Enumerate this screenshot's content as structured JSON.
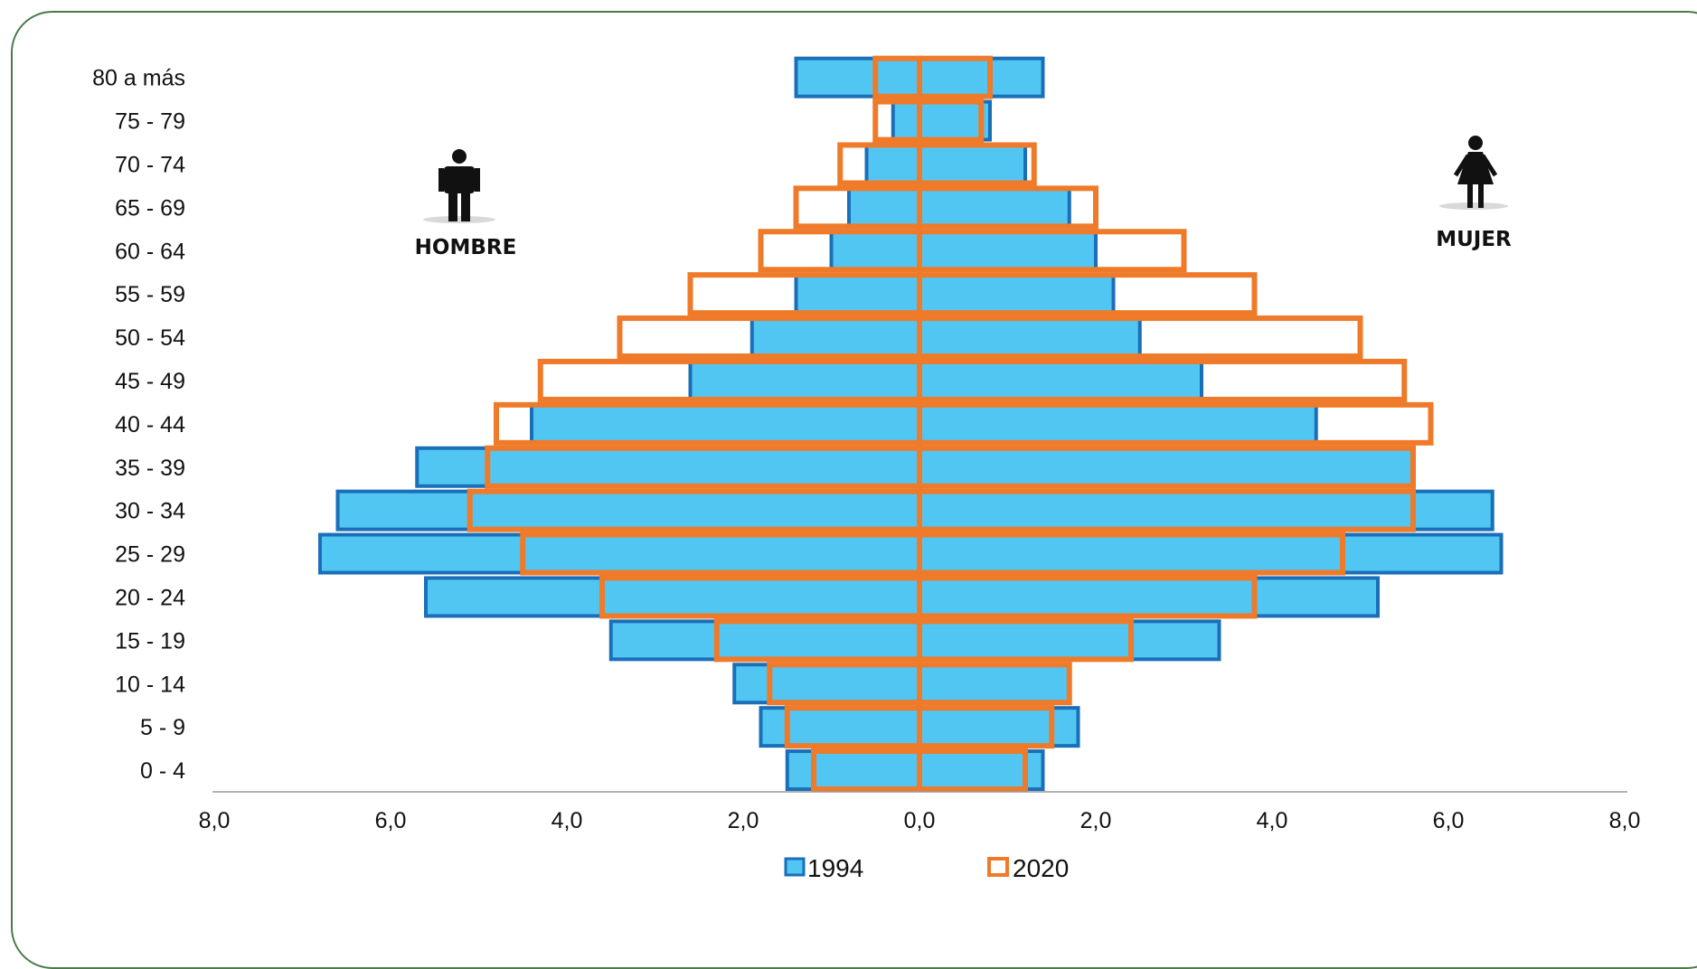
{
  "chart_data": {
    "type": "bar",
    "orientation": "horizontal-population-pyramid",
    "categories": [
      "0 - 4",
      "5 - 9",
      "10 - 14",
      "15 - 19",
      "20 - 24",
      "25 - 29",
      "30 - 34",
      "35 - 39",
      "40 - 44",
      "45 - 49",
      "50 - 54",
      "55 - 59",
      "60 - 64",
      "65 - 69",
      "70 - 74",
      "75 - 79",
      "80 a más"
    ],
    "series": [
      {
        "name": "1994",
        "color": "#52c6f2",
        "edge": "#1a6fb8",
        "hombre": [
          1.5,
          1.8,
          2.1,
          3.5,
          5.6,
          6.8,
          6.6,
          5.7,
          4.4,
          2.6,
          1.9,
          1.4,
          1.0,
          0.8,
          0.6,
          0.3,
          1.4
        ],
        "mujer": [
          1.4,
          1.8,
          1.7,
          3.4,
          5.2,
          6.6,
          6.5,
          5.6,
          4.5,
          3.2,
          2.5,
          2.2,
          2.0,
          1.7,
          1.2,
          0.8,
          1.4
        ]
      },
      {
        "name": "2020",
        "color": "none",
        "edge": "#ee7a2a",
        "hombre": [
          1.2,
          1.5,
          1.7,
          2.3,
          3.6,
          4.5,
          5.1,
          4.9,
          4.8,
          4.3,
          3.4,
          2.6,
          1.8,
          1.4,
          0.9,
          0.5,
          0.5
        ],
        "mujer": [
          1.2,
          1.5,
          1.7,
          2.4,
          3.8,
          4.8,
          5.6,
          5.6,
          5.8,
          5.5,
          5.0,
          3.8,
          3.0,
          2.0,
          1.3,
          0.7,
          0.8
        ]
      }
    ],
    "x_ticks": [
      "8,0",
      "6,0",
      "4,0",
      "2,0",
      "0,0",
      "2,0",
      "4,0",
      "6,0",
      "8,0"
    ],
    "xlim": [
      -8,
      8
    ],
    "legend": [
      "1994",
      "2020"
    ],
    "legend_position": "bottom-center",
    "grid": false
  },
  "labels": {
    "left_sex": "HOMBRE",
    "right_sex": "MUJER"
  },
  "icons": {
    "left": "man-icon",
    "right": "woman-icon"
  }
}
